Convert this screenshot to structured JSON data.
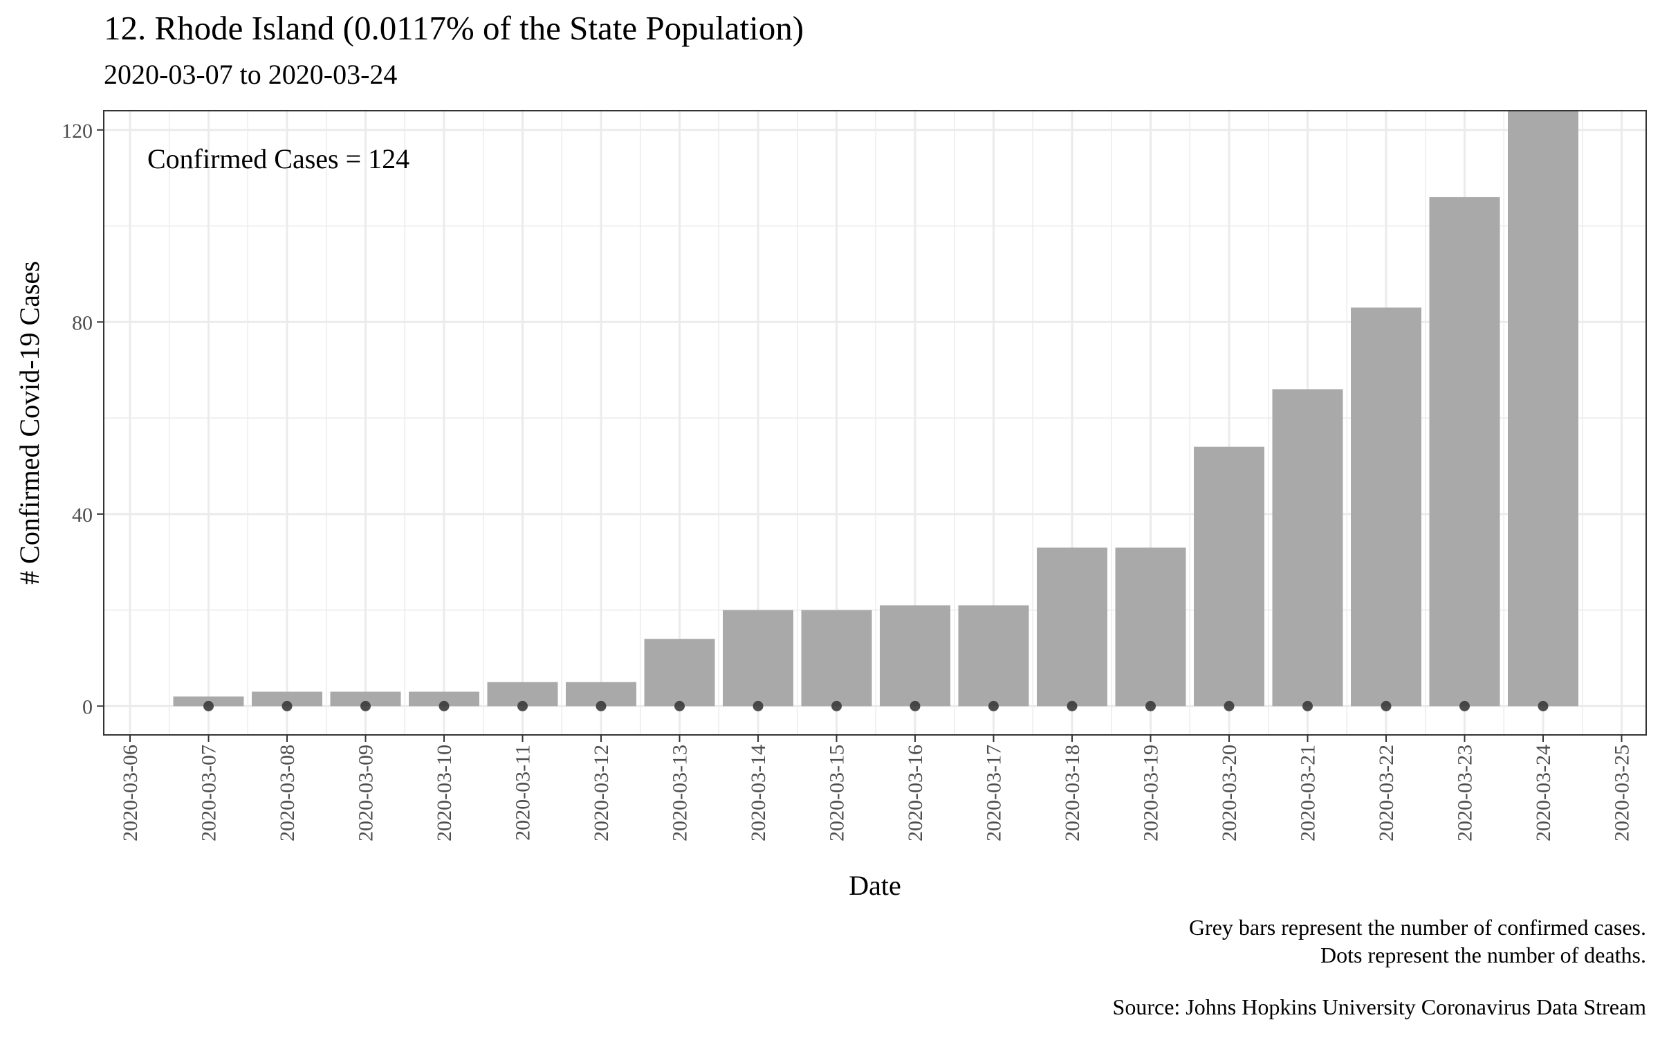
{
  "chart_data": {
    "type": "bar",
    "title": "12. Rhode Island (0.0117% of the State Population)",
    "subtitle": "2020-03-07 to 2020-03-24",
    "xlabel": "Date",
    "ylabel": "# Confirmed Covid-19 Cases",
    "annotation": "Confirmed Cases = 124",
    "x_ticks": [
      "2020-03-06",
      "2020-03-07",
      "2020-03-08",
      "2020-03-09",
      "2020-03-10",
      "2020-03-11",
      "2020-03-12",
      "2020-03-13",
      "2020-03-14",
      "2020-03-15",
      "2020-03-16",
      "2020-03-17",
      "2020-03-18",
      "2020-03-19",
      "2020-03-20",
      "2020-03-21",
      "2020-03-22",
      "2020-03-23",
      "2020-03-24",
      "2020-03-25"
    ],
    "y_ticks": [
      0,
      40,
      80,
      120
    ],
    "ylim": [
      -6,
      124
    ],
    "grid": true,
    "categories": [
      "2020-03-07",
      "2020-03-08",
      "2020-03-09",
      "2020-03-10",
      "2020-03-11",
      "2020-03-12",
      "2020-03-13",
      "2020-03-14",
      "2020-03-15",
      "2020-03-16",
      "2020-03-17",
      "2020-03-18",
      "2020-03-19",
      "2020-03-20",
      "2020-03-21",
      "2020-03-22",
      "2020-03-23",
      "2020-03-24"
    ],
    "cases": [
      2,
      3,
      3,
      3,
      5,
      5,
      14,
      20,
      20,
      21,
      21,
      33,
      33,
      54,
      66,
      83,
      106,
      124
    ],
    "deaths": [
      0,
      0,
      0,
      0,
      0,
      0,
      0,
      0,
      0,
      0,
      0,
      0,
      0,
      0,
      0,
      0,
      0,
      0
    ],
    "colors": {
      "bar": "#a9a9a9",
      "dot": "#3a3a3a",
      "grid": "#ebebeb",
      "panel_border": "#333333"
    }
  },
  "caption": {
    "line1": "Grey bars represent the number of confirmed cases.",
    "line2": "Dots represent the number of deaths.",
    "source": "Source: Johns Hopkins University Coronavirus Data Stream"
  }
}
